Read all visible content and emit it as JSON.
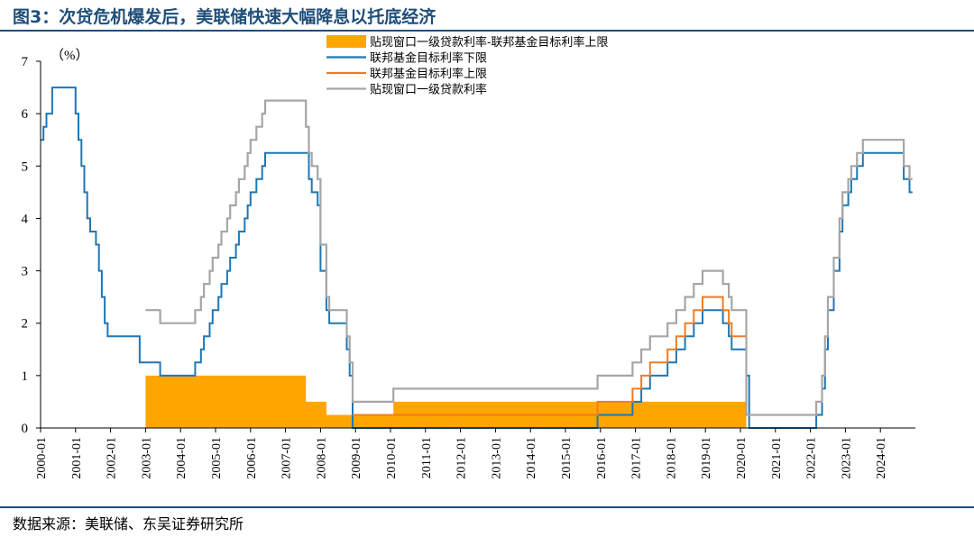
{
  "header": {
    "title": "图3：次贷危机爆发后，美联储快速大幅降息以托底经济"
  },
  "footer": {
    "source": "数据来源：美联储、东吴证券研究所"
  },
  "chart_data": {
    "type": "line",
    "ylabel": "（%）",
    "ylim": [
      0,
      7
    ],
    "yticks": [
      "0",
      "1",
      "2",
      "3",
      "4",
      "5",
      "6",
      "7"
    ],
    "xlim": [
      "2000-01",
      "2024-12"
    ],
    "xticks": [
      "2000-01",
      "2001-01",
      "2002-01",
      "2003-01",
      "2004-01",
      "2005-01",
      "2006-01",
      "2007-01",
      "2008-01",
      "2009-01",
      "2010-01",
      "2011-01",
      "2012-01",
      "2013-01",
      "2014-01",
      "2015-01",
      "2016-01",
      "2017-01",
      "2018-01",
      "2019-01",
      "2020-01",
      "2021-01",
      "2022-01",
      "2023-01",
      "2024-01"
    ],
    "grid": false,
    "legend_position": "top-right",
    "colors": {
      "spread": "#ffa500",
      "lower": "#1f77b4",
      "upper": "#f07c22",
      "discount": "#a6a6a6"
    },
    "series": [
      {
        "key": "spread",
        "name": "贴现窗口一级贷款利率-联邦基金目标利率上限",
        "kind": "area",
        "points": [
          [
            "2003-01",
            1.0
          ],
          [
            "2007-08",
            1.0
          ],
          [
            "2007-08",
            0.5
          ],
          [
            "2008-03",
            0.5
          ],
          [
            "2008-03",
            0.25
          ],
          [
            "2009-12",
            0.25
          ],
          [
            "2010-02",
            0.5
          ],
          [
            "2020-02",
            0.5
          ],
          [
            "2020-03",
            0.0
          ]
        ]
      },
      {
        "key": "lower",
        "name": "联邦基金目标利率下限",
        "kind": "line",
        "points": [
          [
            "2000-01",
            5.5
          ],
          [
            "2000-02",
            5.75
          ],
          [
            "2000-03",
            6.0
          ],
          [
            "2000-05",
            6.5
          ],
          [
            "2001-01",
            6.0
          ],
          [
            "2001-02",
            5.5
          ],
          [
            "2001-03",
            5.0
          ],
          [
            "2001-04",
            4.5
          ],
          [
            "2001-05",
            4.0
          ],
          [
            "2001-06",
            3.75
          ],
          [
            "2001-08",
            3.5
          ],
          [
            "2001-09",
            3.0
          ],
          [
            "2001-10",
            2.5
          ],
          [
            "2001-11",
            2.0
          ],
          [
            "2001-12",
            1.75
          ],
          [
            "2002-11",
            1.25
          ],
          [
            "2003-06",
            1.0
          ],
          [
            "2004-06",
            1.25
          ],
          [
            "2004-08",
            1.5
          ],
          [
            "2004-09",
            1.75
          ],
          [
            "2004-11",
            2.0
          ],
          [
            "2004-12",
            2.25
          ],
          [
            "2005-02",
            2.5
          ],
          [
            "2005-03",
            2.75
          ],
          [
            "2005-05",
            3.0
          ],
          [
            "2005-06",
            3.25
          ],
          [
            "2005-08",
            3.5
          ],
          [
            "2005-09",
            3.75
          ],
          [
            "2005-11",
            4.0
          ],
          [
            "2005-12",
            4.25
          ],
          [
            "2006-01",
            4.5
          ],
          [
            "2006-03",
            4.75
          ],
          [
            "2006-05",
            5.0
          ],
          [
            "2006-06",
            5.25
          ],
          [
            "2007-09",
            4.75
          ],
          [
            "2007-10",
            4.5
          ],
          [
            "2007-12",
            4.25
          ],
          [
            "2008-01",
            3.0
          ],
          [
            "2008-03",
            2.25
          ],
          [
            "2008-04",
            2.0
          ],
          [
            "2008-10",
            1.5
          ],
          [
            "2008-11",
            1.0
          ],
          [
            "2008-12",
            0.0
          ],
          [
            "2015-12",
            0.25
          ],
          [
            "2016-12",
            0.5
          ],
          [
            "2017-03",
            0.75
          ],
          [
            "2017-06",
            1.0
          ],
          [
            "2017-12",
            1.25
          ],
          [
            "2018-03",
            1.5
          ],
          [
            "2018-06",
            1.75
          ],
          [
            "2018-09",
            2.0
          ],
          [
            "2018-12",
            2.25
          ],
          [
            "2019-07",
            2.0
          ],
          [
            "2019-09",
            1.75
          ],
          [
            "2019-10",
            1.5
          ],
          [
            "2020-03",
            1.0
          ],
          [
            "2020-04",
            0.0
          ],
          [
            "2022-03",
            0.25
          ],
          [
            "2022-05",
            0.75
          ],
          [
            "2022-06",
            1.5
          ],
          [
            "2022-07",
            2.25
          ],
          [
            "2022-09",
            3.0
          ],
          [
            "2022-11",
            3.75
          ],
          [
            "2022-12",
            4.25
          ],
          [
            "2023-02",
            4.5
          ],
          [
            "2023-03",
            4.75
          ],
          [
            "2023-05",
            5.0
          ],
          [
            "2023-07",
            5.25
          ],
          [
            "2024-09",
            4.75
          ],
          [
            "2024-11",
            4.5
          ],
          [
            "2024-12",
            4.5
          ]
        ]
      },
      {
        "key": "upper",
        "name": "联邦基金目标利率上限",
        "kind": "line",
        "points": [
          [
            "2008-12",
            0.25
          ],
          [
            "2015-12",
            0.5
          ],
          [
            "2016-12",
            0.75
          ],
          [
            "2017-03",
            1.0
          ],
          [
            "2017-06",
            1.25
          ],
          [
            "2017-12",
            1.5
          ],
          [
            "2018-03",
            1.75
          ],
          [
            "2018-06",
            2.0
          ],
          [
            "2018-09",
            2.25
          ],
          [
            "2018-12",
            2.5
          ],
          [
            "2019-07",
            2.25
          ],
          [
            "2019-09",
            2.0
          ],
          [
            "2019-10",
            1.75
          ],
          [
            "2020-03",
            1.25
          ],
          [
            "2020-03",
            1.0
          ]
        ]
      },
      {
        "key": "discount",
        "name": "贴现窗口一级贷款利率",
        "kind": "line",
        "points": [
          [
            "2003-01",
            2.25
          ],
          [
            "2003-06",
            2.0
          ],
          [
            "2004-06",
            2.25
          ],
          [
            "2004-08",
            2.5
          ],
          [
            "2004-09",
            2.75
          ],
          [
            "2004-11",
            3.0
          ],
          [
            "2004-12",
            3.25
          ],
          [
            "2005-02",
            3.5
          ],
          [
            "2005-03",
            3.75
          ],
          [
            "2005-05",
            4.0
          ],
          [
            "2005-06",
            4.25
          ],
          [
            "2005-08",
            4.5
          ],
          [
            "2005-09",
            4.75
          ],
          [
            "2005-11",
            5.0
          ],
          [
            "2005-12",
            5.25
          ],
          [
            "2006-01",
            5.5
          ],
          [
            "2006-03",
            5.75
          ],
          [
            "2006-05",
            6.0
          ],
          [
            "2006-06",
            6.25
          ],
          [
            "2007-08",
            5.75
          ],
          [
            "2007-09",
            5.25
          ],
          [
            "2007-10",
            5.0
          ],
          [
            "2007-12",
            4.75
          ],
          [
            "2008-01",
            3.5
          ],
          [
            "2008-03",
            2.5
          ],
          [
            "2008-04",
            2.25
          ],
          [
            "2008-10",
            1.75
          ],
          [
            "2008-11",
            1.25
          ],
          [
            "2008-12",
            0.5
          ],
          [
            "2010-02",
            0.75
          ],
          [
            "2015-12",
            1.0
          ],
          [
            "2016-12",
            1.25
          ],
          [
            "2017-03",
            1.5
          ],
          [
            "2017-06",
            1.75
          ],
          [
            "2017-12",
            2.0
          ],
          [
            "2018-03",
            2.25
          ],
          [
            "2018-06",
            2.5
          ],
          [
            "2018-09",
            2.75
          ],
          [
            "2018-12",
            3.0
          ],
          [
            "2019-07",
            2.75
          ],
          [
            "2019-09",
            2.5
          ],
          [
            "2019-10",
            2.25
          ],
          [
            "2020-03",
            0.25
          ],
          [
            "2022-03",
            0.5
          ],
          [
            "2022-05",
            1.0
          ],
          [
            "2022-06",
            1.75
          ],
          [
            "2022-07",
            2.5
          ],
          [
            "2022-09",
            3.25
          ],
          [
            "2022-11",
            4.0
          ],
          [
            "2022-12",
            4.5
          ],
          [
            "2023-02",
            4.75
          ],
          [
            "2023-03",
            5.0
          ],
          [
            "2023-05",
            5.25
          ],
          [
            "2023-07",
            5.5
          ],
          [
            "2024-09",
            5.0
          ],
          [
            "2024-11",
            4.75
          ],
          [
            "2024-12",
            4.75
          ]
        ]
      }
    ]
  }
}
